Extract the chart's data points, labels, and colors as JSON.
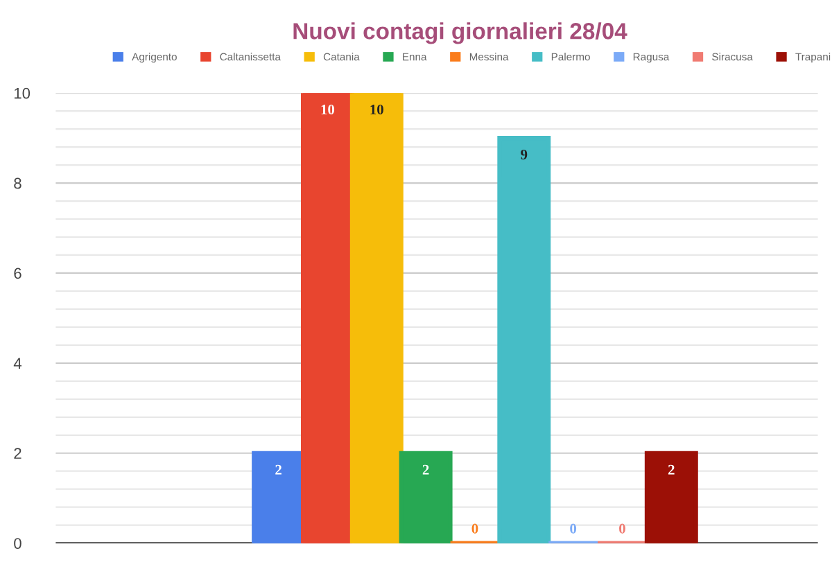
{
  "chart_data": {
    "type": "bar",
    "title": "Nuovi contagi giornalieri 28/04",
    "categories": [
      null
    ],
    "series": [
      {
        "name": "Agrigento",
        "color": "#4a7fea",
        "values": [
          2
        ]
      },
      {
        "name": "Caltanissetta",
        "color": "#e8452f",
        "values": [
          10
        ]
      },
      {
        "name": "Catania",
        "color": "#f6bd0a",
        "values": [
          10
        ]
      },
      {
        "name": "Enna",
        "color": "#27a853",
        "values": [
          2
        ]
      },
      {
        "name": "Messina",
        "color": "#fa7c1b",
        "values": [
          0
        ]
      },
      {
        "name": "Palermo",
        "color": "#46bdc6",
        "values": [
          9
        ]
      },
      {
        "name": "Ragusa",
        "color": "#7baaf7",
        "values": [
          0
        ]
      },
      {
        "name": "Siracusa",
        "color": "#f07b72",
        "values": [
          0
        ]
      },
      {
        "name": "Trapani",
        "color": "#9c1006",
        "values": [
          2
        ]
      }
    ],
    "ylim": [
      0,
      10
    ],
    "yticks": [
      0,
      {
        "value": 0.4,
        "label": null
      },
      {
        "value": 0.8,
        "label": null
      },
      {
        "value": 1.2,
        "label": null
      },
      {
        "value": 1.6,
        "label": null
      },
      2,
      {
        "value": 2.4,
        "label": null
      },
      {
        "value": 2.8,
        "label": null
      },
      {
        "value": 3.2,
        "label": null
      },
      {
        "value": 3.6,
        "label": null
      },
      4,
      {
        "value": 4.4,
        "label": null
      },
      {
        "value": 4.8,
        "label": null
      },
      {
        "value": 5.2,
        "label": null
      },
      {
        "value": 5.6,
        "label": null
      },
      6,
      {
        "value": 6.4,
        "label": null
      },
      {
        "value": 6.8,
        "label": null
      },
      {
        "value": 7.2,
        "label": null
      },
      {
        "value": 7.6,
        "label": null
      },
      8,
      {
        "value": 8.4,
        "label": null
      },
      {
        "value": 8.8,
        "label": null
      },
      {
        "value": 9.2,
        "label": null
      },
      {
        "value": 9.6,
        "label": null
      },
      10
    ],
    "grid": true,
    "legend": "top",
    "data_labels": true
  }
}
